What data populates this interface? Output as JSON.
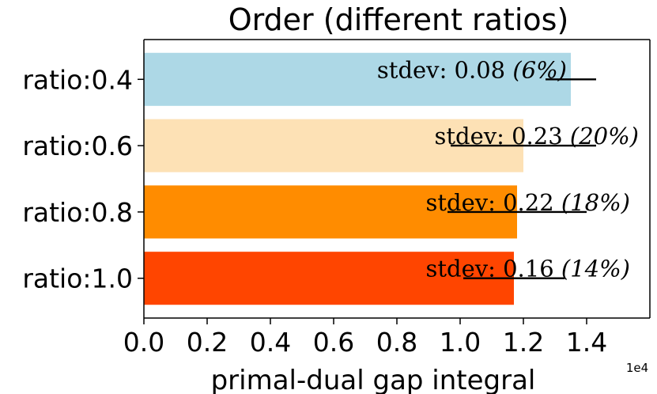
{
  "chart_data": {
    "type": "bar",
    "orientation": "horizontal",
    "title": "Order (different ratios)",
    "xlabel": "primal-dual gap integral",
    "x_scale_label": "1e4",
    "xlim": [
      0,
      1.6
    ],
    "x_ticks": [
      "0.0",
      "0.2",
      "0.4",
      "0.6",
      "0.8",
      "1.0",
      "1.2",
      "1.4"
    ],
    "x_tick_values": [
      0.0,
      0.2,
      0.4,
      0.6,
      0.8,
      1.0,
      1.2,
      1.4
    ],
    "categories": [
      "ratio:0.4",
      "ratio:0.6",
      "ratio:0.8",
      "ratio:1.0"
    ],
    "values": [
      1.35,
      1.2,
      1.18,
      1.17
    ],
    "errors": [
      0.08,
      0.23,
      0.22,
      0.16
    ],
    "colors": [
      "#add8e6",
      "#fde1b5",
      "#ff8c00",
      "#ff4500"
    ],
    "annotations": [
      {
        "label": "stdev: 0.08 ",
        "pct": "(6%)"
      },
      {
        "label": "stdev: 0.23 ",
        "pct": "(20%)"
      },
      {
        "label": "stdev: 0.22 ",
        "pct": "(18%)"
      },
      {
        "label": "stdev: 0.16 ",
        "pct": "(14%)"
      }
    ],
    "grid": false,
    "legend": false
  }
}
